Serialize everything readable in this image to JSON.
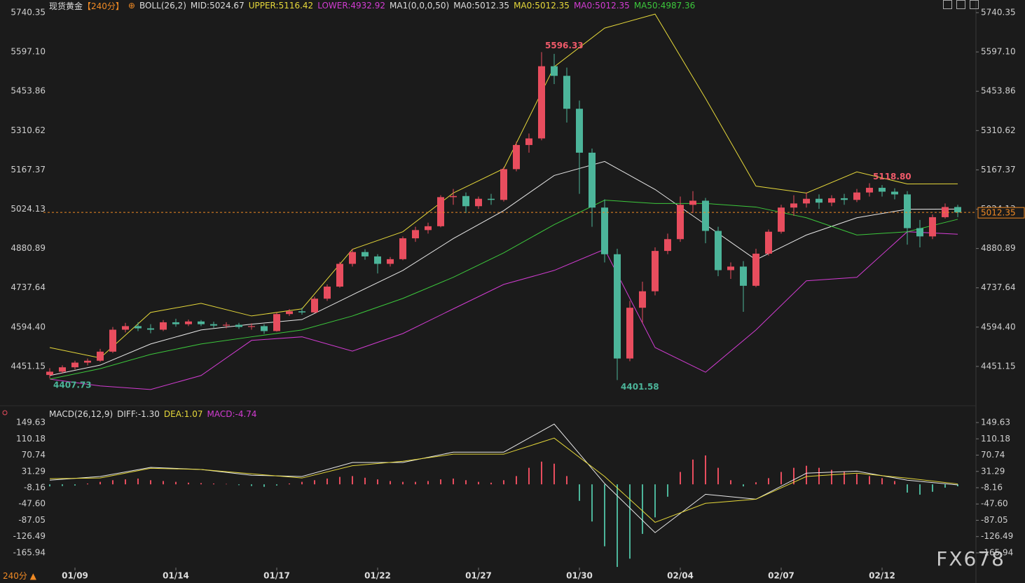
{
  "header": {
    "symbol": "现货黄金",
    "period": "【240分】",
    "bottom_period": "240分 ▲",
    "watermark": "FX678"
  },
  "chart_data": [
    {
      "type": "candlestick",
      "legend": [
        {
          "text": "BOLL(26,2)",
          "color": "#dddddd"
        },
        {
          "text": "MID:5024.67",
          "color": "#dddddd"
        },
        {
          "text": "UPPER:5116.42",
          "color": "#e6d83a"
        },
        {
          "text": "LOWER:4932.92",
          "color": "#d23cd2"
        },
        {
          "text": "MA1(0,0,0,50)",
          "color": "#dddddd"
        },
        {
          "text": "MA0:5012.35",
          "color": "#dddddd"
        },
        {
          "text": "MA0:5012.35",
          "color": "#e6d83a"
        },
        {
          "text": "MA0:5012.35",
          "color": "#d23cd2"
        },
        {
          "text": "MA50:4987.36",
          "color": "#3cc83c"
        }
      ],
      "up_color": "#e84d5e",
      "down_color": "#4cb59a",
      "open": [
        4420,
        4432,
        4448,
        4465,
        4472,
        4505,
        4585,
        4598,
        4590,
        4585,
        4612,
        4605,
        4615,
        4605,
        4600,
        4603,
        4595,
        4598,
        4580,
        4642,
        4652,
        4648,
        4698,
        4742,
        4825,
        4868,
        4852,
        4825,
        4842,
        4918,
        4948,
        4962,
        5068,
        5072,
        5035,
        5062,
        5058,
        5170,
        5258,
        5282,
        5545,
        5510,
        5390,
        5230,
        5030,
        4860,
        4480,
        4665,
        4725,
        4872,
        4915,
        5040,
        5055,
        4945,
        4802,
        4815,
        4745,
        4862,
        4942,
        5030,
        5045,
        5062,
        5048,
        5064,
        5058,
        5085,
        5102,
        5088,
        5078,
        4955,
        4925,
        4995,
        5032
      ],
      "high": [
        4445,
        4455,
        4472,
        4480,
        4515,
        4595,
        4610,
        4612,
        4605,
        4620,
        4625,
        4622,
        4620,
        4614,
        4612,
        4610,
        4608,
        4605,
        4648,
        4660,
        4665,
        4705,
        4750,
        4832,
        4880,
        4878,
        4860,
        4850,
        4925,
        4960,
        4975,
        5075,
        5098,
        5085,
        5070,
        5080,
        5178,
        5270,
        5300,
        5596.33,
        5590,
        5540,
        5420,
        5245,
        5060,
        4880,
        4690,
        4760,
        4885,
        4935,
        5070,
        5090,
        5065,
        4960,
        4830,
        4835,
        4880,
        4950,
        5040,
        5075,
        5085,
        5078,
        5075,
        5080,
        5098,
        5118.8,
        5112,
        5100,
        5090,
        4985,
        5005,
        5045,
        5040
      ],
      "low": [
        4407.73,
        4425,
        4440,
        4455,
        4468,
        4500,
        4575,
        4580,
        4572,
        4580,
        4596,
        4598,
        4598,
        4592,
        4590,
        4588,
        4585,
        4570,
        4578,
        4635,
        4640,
        4645,
        4690,
        4738,
        4815,
        4840,
        4790,
        4815,
        4838,
        4905,
        4935,
        4958,
        5040,
        5010,
        5025,
        5040,
        5052,
        5162,
        5230,
        5275,
        5480,
        5340,
        5080,
        4960,
        4830,
        4401.58,
        4470,
        4610,
        4710,
        4860,
        4905,
        5010,
        4900,
        4780,
        4770,
        4650,
        4740,
        4855,
        4935,
        5000,
        5030,
        5025,
        5035,
        5040,
        5050,
        5070,
        5070,
        5060,
        4895,
        4885,
        4915,
        4990,
        4995
      ],
      "close": [
        4432,
        4448,
        4465,
        4472,
        4505,
        4585,
        4598,
        4590,
        4585,
        4612,
        4605,
        4615,
        4605,
        4600,
        4603,
        4595,
        4598,
        4580,
        4642,
        4652,
        4648,
        4698,
        4742,
        4825,
        4868,
        4852,
        4825,
        4842,
        4918,
        4948,
        4962,
        5068,
        5072,
        5035,
        5062,
        5058,
        5170,
        5258,
        5282,
        5545,
        5510,
        5390,
        5230,
        5030,
        4860,
        4480,
        4665,
        4725,
        4872,
        4915,
        5040,
        5055,
        4945,
        4802,
        4815,
        4745,
        4862,
        4942,
        5030,
        5045,
        5062,
        5048,
        5064,
        5058,
        5085,
        5102,
        5088,
        5078,
        4955,
        4925,
        4995,
        5032,
        5012.35
      ],
      "extreme_labels": [
        "5596.33",
        "4407.73",
        "4401.58",
        "5118.80"
      ],
      "extreme_colors": {
        "high": "#f05a6a",
        "low": "#4cb59a"
      },
      "last_price_color": "#f08a24",
      "overlay_x": [
        0,
        4,
        8,
        12,
        16,
        20,
        24,
        28,
        32,
        36,
        40,
        44,
        48,
        52,
        56,
        60,
        64,
        68,
        72
      ],
      "overlays": [
        {
          "color": "#e6d83a",
          "values": [
            4520,
            4482,
            4648,
            4681,
            4635,
            4661,
            4878,
            4942,
            5083,
            5172,
            5543,
            5684,
            5735,
            5428,
            5108,
            5083,
            5160,
            5116,
            5116.42
          ]
        },
        {
          "color": "#e8e8e8",
          "values": [
            4418,
            4456,
            4533,
            4584,
            4605,
            4622,
            4712,
            4801,
            4917,
            5019,
            5147,
            5198,
            5096,
            4968,
            4840,
            4930,
            4993,
            5024,
            5024.67
          ]
        },
        {
          "color": "#d23cd2",
          "values": [
            4405,
            4380,
            4367,
            4418,
            4546,
            4559,
            4507,
            4571,
            4661,
            4750,
            4801,
            4878,
            4520,
            4430,
            4584,
            4763,
            4776,
            4942,
            4932.92
          ]
        },
        {
          "color": "#3cc83c",
          "values": [
            4405,
            4443,
            4495,
            4533,
            4559,
            4584,
            4635,
            4699,
            4776,
            4865,
            4968,
            5057,
            5045,
            5045,
            5032,
            4993,
            4930,
            4942,
            4987.36
          ]
        }
      ],
      "ylim": [
        4318.2,
        5773.6
      ],
      "yticks": [
        5740.35,
        {
          "value": 5597.1,
          "label": "5597.10"
        },
        5453.86,
        5310.62,
        5167.37,
        5024.13,
        4880.89,
        4737.64,
        {
          "value": 4594.4,
          "label": "4594.40"
        },
        4451.15
      ],
      "xticks": [
        {
          "value": 2,
          "label": "01/09"
        },
        {
          "value": 10,
          "label": "01/14"
        },
        {
          "value": 18,
          "label": "01/17"
        },
        {
          "value": 26,
          "label": "01/22"
        },
        {
          "value": 34,
          "label": "01/27"
        },
        {
          "value": 42,
          "label": "01/30"
        },
        {
          "value": 50,
          "label": "02/04"
        },
        {
          "value": 58,
          "label": "02/07"
        },
        {
          "value": 66,
          "label": "02/12"
        }
      ]
    },
    {
      "type": "macd",
      "legend": [
        {
          "text": "MACD(26,12,9)",
          "color": "#dddddd"
        },
        {
          "text": "DIFF:-1.30",
          "color": "#dddddd"
        },
        {
          "text": "DEA:1.07",
          "color": "#e6d83a"
        },
        {
          "text": "MACD:-4.74",
          "color": "#d23cd2"
        }
      ],
      "histogram": [
        -5,
        -4,
        -3,
        2,
        6,
        10,
        12,
        14,
        10,
        8,
        6,
        4,
        3,
        2,
        1,
        -2,
        -4,
        -6,
        -3,
        2,
        6,
        10,
        14,
        18,
        20,
        16,
        12,
        8,
        6,
        6,
        8,
        12,
        14,
        10,
        6,
        4,
        10,
        20,
        40,
        55,
        50,
        20,
        -40,
        -90,
        -150,
        -200,
        -180,
        -120,
        -80,
        -30,
        30,
        60,
        70,
        40,
        10,
        -5,
        5,
        15,
        30,
        40,
        45,
        40,
        35,
        30,
        25,
        20,
        15,
        8,
        -20,
        -25,
        -18,
        -8,
        -4.74
      ],
      "up_color": "#e84d5e",
      "down_color": "#4cb59a",
      "x": [
        0,
        4,
        8,
        12,
        16,
        20,
        24,
        28,
        32,
        36,
        40,
        44,
        48,
        52,
        56,
        60,
        64,
        68,
        72
      ],
      "series": [
        {
          "color": "#e8e8e8",
          "values": [
            10,
            19,
            41,
            36,
            22,
            19,
            53,
            53,
            78,
            78,
            146,
            2,
            -117,
            -24,
            -36,
            27,
            32,
            10,
            -1.3
          ]
        },
        {
          "color": "#e6d83a",
          "values": [
            13.6,
            15.3,
            39,
            36,
            25.5,
            15.3,
            45,
            56,
            73,
            73,
            112,
            19,
            -92,
            -46,
            -36,
            19,
            27,
            15,
            1.07
          ]
        }
      ],
      "ylim": [
        -201.6,
        180.2
      ],
      "yticks": [
        149.63,
        110.18,
        70.74,
        31.29,
        -8.16,
        {
          "value": -47.6,
          "label": "-47.60"
        },
        -87.05,
        -126.49,
        -165.94
      ]
    }
  ]
}
